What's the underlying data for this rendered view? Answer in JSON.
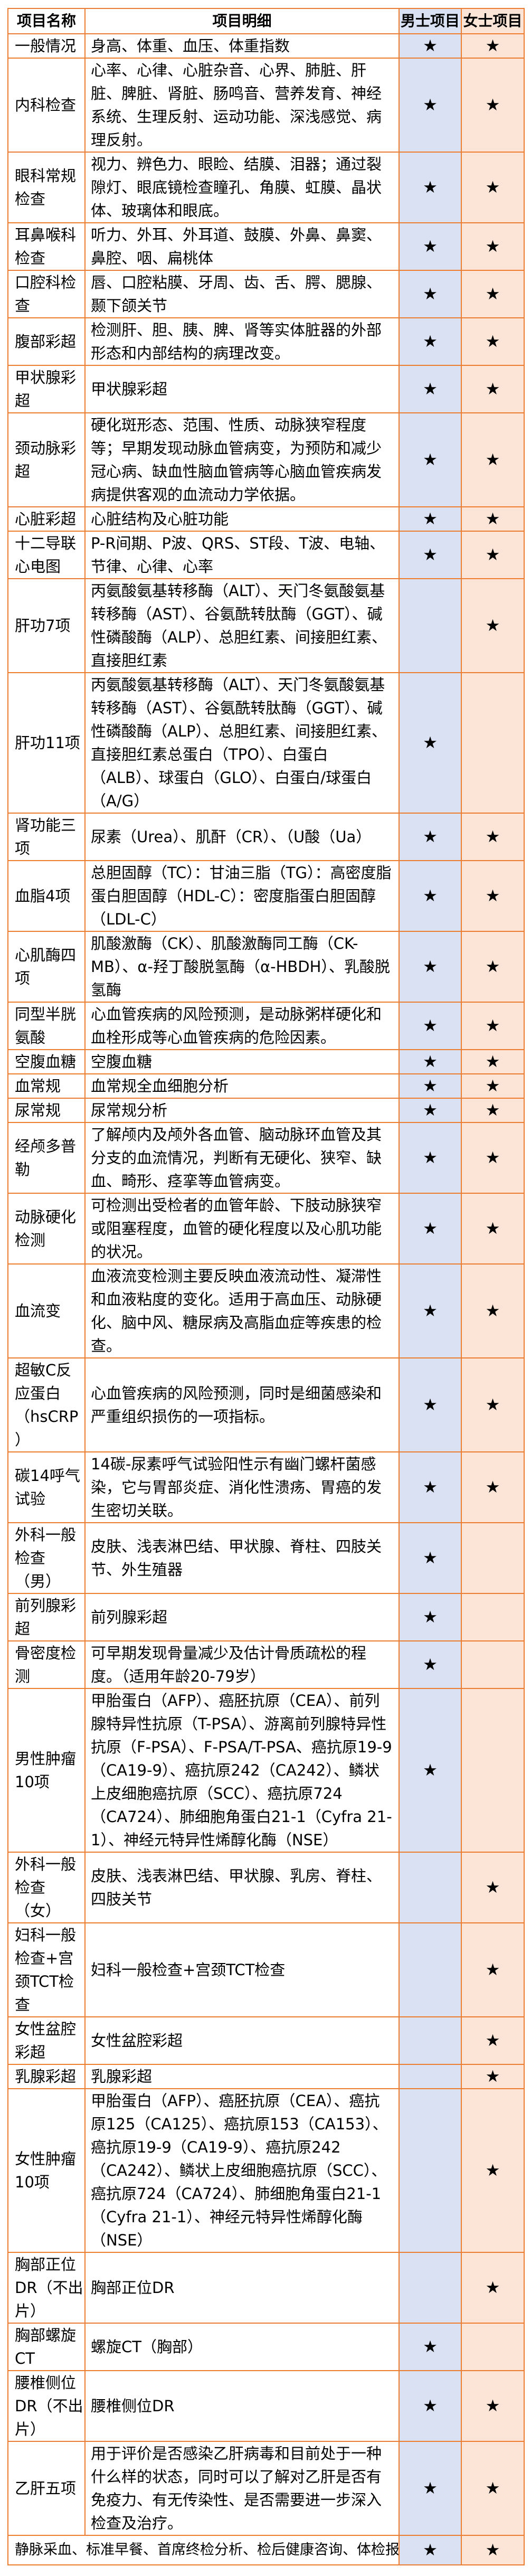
{
  "table": {
    "star_symbol": "★",
    "colors": {
      "border": "#ED7D31",
      "male_column_bg": "#D9E1F2",
      "female_column_bg": "#FCE4D6",
      "text": "#000000",
      "cell_bg": "#FFFFFF"
    },
    "headers": {
      "item_name": "项目名称",
      "item_detail": "项目明细",
      "male": "男士项目",
      "female": "女士项目"
    },
    "rows": [
      {
        "name": "一般情况",
        "detail": "身高、体重、血压、体重指数",
        "male": true,
        "female": true
      },
      {
        "name": "内科检查",
        "detail": "心率、心律、心脏杂音、心界、肺脏、肝脏、脾脏、肾脏、肠鸣音、营养发育、神经系统、生理反射、运动功能、深浅感觉、病理反射。",
        "male": true,
        "female": true
      },
      {
        "name": "眼科常规检查",
        "detail": "视力、辨色力、眼睑、结膜、泪器；通过裂隙灯、眼底镜检查瞳孔、角膜、虹膜、晶状体、玻璃体和眼底。",
        "male": true,
        "female": true
      },
      {
        "name": "耳鼻喉科检查",
        "detail": "听力、外耳、外耳道、鼓膜、外鼻、鼻窦、鼻腔、咽、扁桃体",
        "male": true,
        "female": true
      },
      {
        "name": "口腔科检查",
        "detail": "唇、口腔粘膜、牙周、齿、舌、腭、腮腺、颞下颌关节",
        "male": true,
        "female": true
      },
      {
        "name": "腹部彩超",
        "detail": "检测肝、胆、胰、脾、肾等实体脏器的外部形态和内部结构的病理改变。",
        "male": true,
        "female": true
      },
      {
        "name": "甲状腺彩超",
        "detail": "甲状腺彩超",
        "male": true,
        "female": true
      },
      {
        "name": "颈动脉彩超",
        "detail": "硬化斑形态、范围、性质、动脉狭窄程度等；早期发现动脉血管病变，为预防和减少冠心病、缺血性脑血管病等心脑血管疾病发病提供客观的血流动力学依据。",
        "male": true,
        "female": true
      },
      {
        "name": "心脏彩超",
        "detail": "心脏结构及心脏功能",
        "male": true,
        "female": true
      },
      {
        "name": "十二导联心电图",
        "detail": "P-R间期、P波、QRS、ST段、T波、电轴、节律、心律、心率",
        "male": true,
        "female": true
      },
      {
        "name": "肝功7项",
        "detail": "丙氨酸氨基转移酶（ALT）、天门冬氨酸氨基转移酶（AST）、谷氨酰转肽酶（GGT）、碱性磷酸酶（ALP）、总胆红素、间接胆红素、直接胆红素",
        "male": false,
        "female": true
      },
      {
        "name": "肝功11项",
        "detail": "丙氨酸氨基转移酶（ALT）、天门冬氨酸氨基转移酶（AST）、谷氨酰转肽酶（GGT）、碱性磷酸酶（ALP）、总胆红素、间接胆红素、直接胆红素总蛋白（TPO）、白蛋白（ALB）、球蛋白（GLO）、白蛋白/球蛋白（A/G）",
        "male": true,
        "female": false
      },
      {
        "name": "肾功能三项",
        "detail": "尿素（Urea）、肌酐（CR）、（U酸（Ua）",
        "male": true,
        "female": true
      },
      {
        "name": "血脂4项",
        "detail": "总胆固醇（TC）：甘油三脂（TG）：高密度脂蛋白胆固醇（HDL-C）：密度脂蛋白胆固醇（LDL-C）",
        "male": true,
        "female": true
      },
      {
        "name": "心肌酶四项",
        "detail": "肌酸激酶（CK）、肌酸激酶同工酶（CK-MB）、α-羟丁酸脱氢酶（α-HBDH）、乳酸脱氢酶",
        "male": true,
        "female": true
      },
      {
        "name": "同型半胱氨酸",
        "detail": "心血管疾病的风险预测，是动脉粥样硬化和血栓形成等心血管疾病的危险因素。",
        "male": true,
        "female": true
      },
      {
        "name": "空腹血糖",
        "detail": "空腹血糖",
        "male": true,
        "female": true
      },
      {
        "name": "血常规",
        "detail": "血常规全血细胞分析",
        "male": true,
        "female": true
      },
      {
        "name": "尿常规",
        "detail": "尿常规分析",
        "male": true,
        "female": true
      },
      {
        "name": "经颅多普勒",
        "detail": "了解颅内及颅外各血管、脑动脉环血管及其分支的血流情况，判断有无硬化、狭窄、缺血、畸形、痉挛等血管病变。",
        "male": true,
        "female": true
      },
      {
        "name": "动脉硬化检测",
        "detail": "可检测出受检者的血管年龄、下肢动脉狭窄或阻塞程度，血管的硬化程度以及心肌功能的状况。",
        "male": true,
        "female": true
      },
      {
        "name": "血流变",
        "detail": "血液流变检测主要反映血液流动性、凝滞性和血液粘度的变化。适用于高血压、动脉硬化、脑中风、糖尿病及高脂血症等疾患的检查。",
        "male": true,
        "female": true
      },
      {
        "name": "超敏C反应蛋白（hsCRP）",
        "detail": "心血管疾病的风险预测，同时是细菌感染和严重组织损伤的一项指标。",
        "male": true,
        "female": true
      },
      {
        "name": "碳14呼气试验",
        "detail": "14碳-尿素呼气试验阳性示有幽门螺杆菌感染，它与胃部炎症、消化性溃疡、胃癌的发生密切关联。",
        "male": true,
        "female": true
      },
      {
        "name": "外科一般检查（男）",
        "detail": "皮肤、浅表淋巴结、甲状腺、脊柱、四肢关节、外生殖器",
        "male": true,
        "female": false
      },
      {
        "name": "前列腺彩超",
        "detail": "前列腺彩超",
        "male": true,
        "female": false
      },
      {
        "name": "骨密度检测",
        "detail": "可早期发现骨量减少及估计骨质疏松的程度。（适用年龄20-79岁）",
        "male": true,
        "female": false
      },
      {
        "name": "男性肿瘤10项",
        "detail": "甲胎蛋白（AFP）、癌胚抗原（CEA）、前列腺特异性抗原（T-PSA）、游离前列腺特异性抗原（F-PSA）、F-PSA/T-PSA、癌抗原19-9（CA19-9）、癌抗原242（CA242）、鳞状上皮细胞癌抗原（SCC）、癌抗原724（CA724）、肺细胞角蛋白21-1（Cyfra 21-1）、神经元特异性烯醇化酶（NSE）",
        "male": true,
        "female": false
      },
      {
        "name": "外科一般检查（女）",
        "detail": "皮肤、浅表淋巴结、甲状腺、乳房、脊柱、四肢关节",
        "male": false,
        "female": true
      },
      {
        "name": "妇科一般检查+宫颈TCT检查",
        "detail": "妇科一般检查+宫颈TCT检查",
        "male": false,
        "female": true
      },
      {
        "name": "女性盆腔彩超",
        "detail": "女性盆腔彩超",
        "male": false,
        "female": true
      },
      {
        "name": "乳腺彩超",
        "detail": "乳腺彩超",
        "male": false,
        "female": true
      },
      {
        "name": "女性肿瘤10项",
        "detail": "甲胎蛋白（AFP）、癌胚抗原（CEA）、癌抗原125（CA125）、癌抗原153（CA153）、癌抗原19-9（CA19-9）、癌抗原242（CA242）、鳞状上皮细胞癌抗原（SCC）、癌抗原724（CA724）、肺细胞角蛋白21-1（Cyfra 21-1）、神经元特异性烯醇化酶（NSE）",
        "male": false,
        "female": true
      },
      {
        "name": "胸部正位DR（不出片）",
        "detail": "胸部正位DR",
        "male": false,
        "female": true
      },
      {
        "name": "胸部螺旋CT",
        "detail": "螺旋CT（胸部）",
        "male": true,
        "female": false
      },
      {
        "name": "腰椎侧位DR（不出片）",
        "detail": "腰椎侧位DR",
        "male": true,
        "female": true
      },
      {
        "name": "乙肝五项",
        "detail": "用于评价是否感染乙肝病毒和目前处于一种什么样的状态，同时可以了解对乙肝是否有免疫力、有无传染性、是否需要进一步深入检查及治疗。",
        "male": true,
        "female": true
      },
      {
        "name": "",
        "detail": "静脉采血、标准早餐、首席终检分析、检后健康咨询、体检报告",
        "male": true,
        "female": true,
        "merged": true
      }
    ]
  }
}
